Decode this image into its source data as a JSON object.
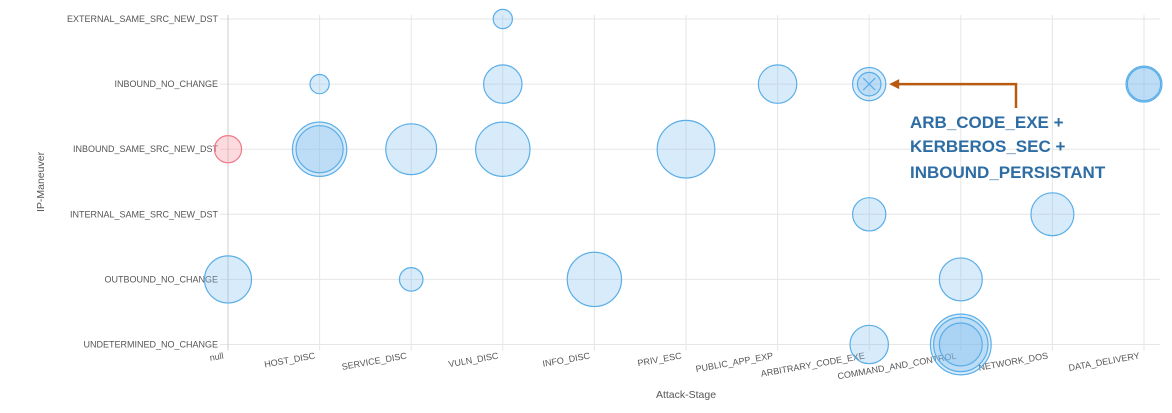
{
  "chart_data": {
    "type": "scatter",
    "subtype": "bubble",
    "xlabel": "Attack-Stage",
    "ylabel": "IP-Maneuver",
    "x_categories": [
      "null",
      "HOST_DISC",
      "SERVICE_DISC",
      "VULN_DISC",
      "INFO_DISC",
      "PRIV_ESC",
      "PUBLIC_APP_EXP",
      "ARBITRARY_CODE_EXE",
      "COMMAND_AND_CONTROL",
      "NETWORK_DOS",
      "DATA_DELIVERY"
    ],
    "y_categories": [
      "EXTERNAL_SAME_SRC_NEW_DST",
      "INBOUND_NO_CHANGE",
      "INBOUND_SAME_SRC_NEW_DST",
      "INTERNAL_SAME_SRC_NEW_DST",
      "OUTBOUND_NO_CHANGE",
      "UNDETERMINED_NO_CHANGE"
    ],
    "grid": true,
    "colors": {
      "bubble_fill": "rgba(125,190,240,0.30)",
      "bubble_stroke": "#5aaee8",
      "highlight_fill": "rgba(245,150,160,0.35)",
      "highlight_stroke": "#f07a8a",
      "annotation_arrow": "#b85a10",
      "annotation_text": "#2e6da4",
      "grid": "#e6e6e6"
    },
    "points": [
      {
        "x": "VULN_DISC",
        "y": "EXTERNAL_SAME_SRC_NEW_DST",
        "size": 1
      },
      {
        "x": "HOST_DISC",
        "y": "INBOUND_NO_CHANGE",
        "size": 1
      },
      {
        "x": "VULN_DISC",
        "y": "INBOUND_NO_CHANGE",
        "size": 4
      },
      {
        "x": "PUBLIC_APP_EXP",
        "y": "INBOUND_NO_CHANGE",
        "size": 4
      },
      {
        "x": "ARBITRARY_CODE_EXE",
        "y": "INBOUND_NO_CHANGE",
        "size": 3
      },
      {
        "x": "ARBITRARY_CODE_EXE",
        "y": "INBOUND_NO_CHANGE",
        "size": 1.5
      },
      {
        "x": "DATA_DELIVERY",
        "y": "INBOUND_NO_CHANGE",
        "size": 3.5
      },
      {
        "x": "DATA_DELIVERY",
        "y": "INBOUND_NO_CHANGE",
        "size": 3
      },
      {
        "x": "null",
        "y": "INBOUND_SAME_SRC_NEW_DST",
        "size": 2,
        "highlight": true
      },
      {
        "x": "HOST_DISC",
        "y": "INBOUND_SAME_SRC_NEW_DST",
        "size": 8
      },
      {
        "x": "HOST_DISC",
        "y": "INBOUND_SAME_SRC_NEW_DST",
        "size": 6
      },
      {
        "x": "SERVICE_DISC",
        "y": "INBOUND_SAME_SRC_NEW_DST",
        "size": 7
      },
      {
        "x": "VULN_DISC",
        "y": "INBOUND_SAME_SRC_NEW_DST",
        "size": 8
      },
      {
        "x": "PRIV_ESC",
        "y": "INBOUND_SAME_SRC_NEW_DST",
        "size": 9
      },
      {
        "x": "ARBITRARY_CODE_EXE",
        "y": "INTERNAL_SAME_SRC_NEW_DST",
        "size": 3
      },
      {
        "x": "NETWORK_DOS",
        "y": "INTERNAL_SAME_SRC_NEW_DST",
        "size": 5
      },
      {
        "x": "null",
        "y": "OUTBOUND_NO_CHANGE",
        "size": 6
      },
      {
        "x": "SERVICE_DISC",
        "y": "OUTBOUND_NO_CHANGE",
        "size": 1.5
      },
      {
        "x": "INFO_DISC",
        "y": "OUTBOUND_NO_CHANGE",
        "size": 8
      },
      {
        "x": "COMMAND_AND_CONTROL",
        "y": "OUTBOUND_NO_CHANGE",
        "size": 5
      },
      {
        "x": "ARBITRARY_CODE_EXE",
        "y": "UNDETERMINED_NO_CHANGE",
        "size": 4
      },
      {
        "x": "COMMAND_AND_CONTROL",
        "y": "UNDETERMINED_NO_CHANGE",
        "size": 10
      },
      {
        "x": "COMMAND_AND_CONTROL",
        "y": "UNDETERMINED_NO_CHANGE",
        "size": 8
      },
      {
        "x": "COMMAND_AND_CONTROL",
        "y": "UNDETERMINED_NO_CHANGE",
        "size": 5
      }
    ],
    "annotation": {
      "target": {
        "x": "ARBITRARY_CODE_EXE",
        "y": "INBOUND_NO_CHANGE"
      },
      "lines": [
        "ARB_CODE_EXE +",
        "KERBEROS_SEC +",
        "INBOUND_PERSISTANT"
      ]
    }
  }
}
